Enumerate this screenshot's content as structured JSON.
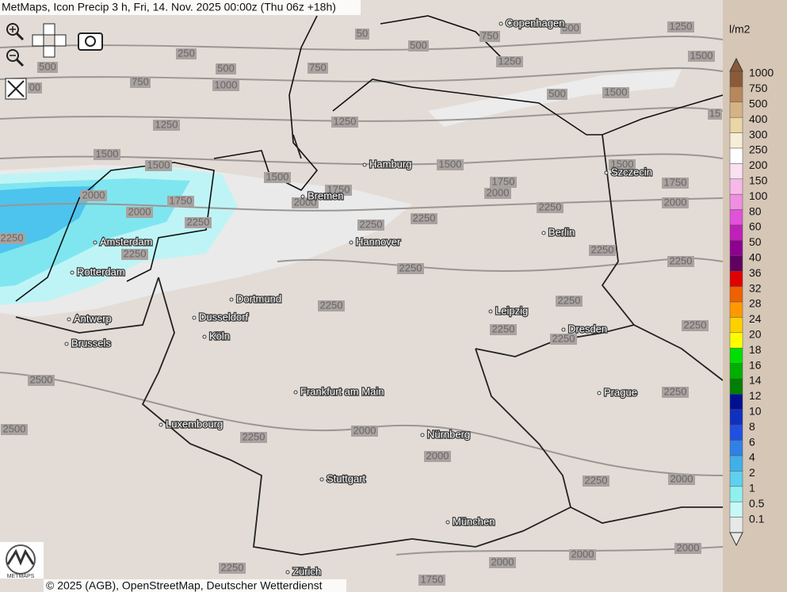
{
  "header": {
    "title": "MetMaps, Icon Precip 3 h, Fri, 14. Nov. 2025 00:00z (Thu 06z +18h)"
  },
  "cities": [
    "Copenhagen",
    "Hamburg",
    "Bremen",
    "Szczecin",
    "Amsterdam",
    "Hannover",
    "Berlin",
    "Rotterdam",
    "Dortmund",
    "Antwerp",
    "Dusseldorf",
    "Leipzig",
    "Dresden",
    "Brussels",
    "Köln",
    "Prague",
    "Frankfurt am Main",
    "Luxembourg",
    "Nürnberg",
    "Stuttgart",
    "München",
    "Zürich"
  ],
  "contour_labels": [
    "250",
    "500",
    "500",
    "750",
    "1000",
    "1250",
    "1500",
    "1500",
    "1500",
    "2000",
    "1750",
    "2000",
    "2250",
    "2250",
    "2250",
    "1750",
    "2000",
    "2250",
    "2250",
    "2250",
    "2250",
    "1250",
    "750",
    "50",
    "500",
    "750",
    "1250",
    "500",
    "1250",
    "1500",
    "1500",
    "500",
    "15",
    "1500",
    "1750",
    "2000",
    "1500",
    "1750",
    "2000",
    "2250",
    "2250",
    "2250",
    "2250",
    "2250",
    "2250",
    "2250",
    "2250",
    "2500",
    "2500",
    "2250",
    "2000",
    "2000",
    "2250",
    "2000",
    "2000",
    "2000",
    "2000",
    "1750",
    "2250",
    "00"
  ],
  "legend": {
    "unit": "l/m2",
    "entries": [
      {
        "label": "1000",
        "color": "#8a5a3a"
      },
      {
        "label": "750",
        "color": "#b8875a"
      },
      {
        "label": "500",
        "color": "#d4b483"
      },
      {
        "label": "400",
        "color": "#ead6a6"
      },
      {
        "label": "300",
        "color": "#f6eed6"
      },
      {
        "label": "250",
        "color": "#ffffff"
      },
      {
        "label": "200",
        "color": "#fbe0f2"
      },
      {
        "label": "150",
        "color": "#f6b9e8"
      },
      {
        "label": "100",
        "color": "#ef8fe0"
      },
      {
        "label": "80",
        "color": "#e052d8"
      },
      {
        "label": "60",
        "color": "#c020b8"
      },
      {
        "label": "50",
        "color": "#900090"
      },
      {
        "label": "40",
        "color": "#600060"
      },
      {
        "label": "36",
        "color": "#e00000"
      },
      {
        "label": "32",
        "color": "#f06000"
      },
      {
        "label": "28",
        "color": "#ff9900"
      },
      {
        "label": "24",
        "color": "#ffd000"
      },
      {
        "label": "20",
        "color": "#ffff00"
      },
      {
        "label": "18",
        "color": "#00e000"
      },
      {
        "label": "16",
        "color": "#00b000"
      },
      {
        "label": "14",
        "color": "#008000"
      },
      {
        "label": "12",
        "color": "#001090"
      },
      {
        "label": "10",
        "color": "#1030c0"
      },
      {
        "label": "8",
        "color": "#2050e0"
      },
      {
        "label": "6",
        "color": "#3080e8"
      },
      {
        "label": "4",
        "color": "#40b0e8"
      },
      {
        "label": "2",
        "color": "#60d0f0"
      },
      {
        "label": "1",
        "color": "#90f0f0"
      },
      {
        "label": "0.5",
        "color": "#c8f8f8"
      },
      {
        "label": "0.1",
        "color": "#e8e8e8"
      }
    ]
  },
  "logo": {
    "text": "METMAPS"
  },
  "footer": {
    "copyright": "© 2025 (AGB), OpenStreetMap, Deutscher Wetterdienst"
  }
}
